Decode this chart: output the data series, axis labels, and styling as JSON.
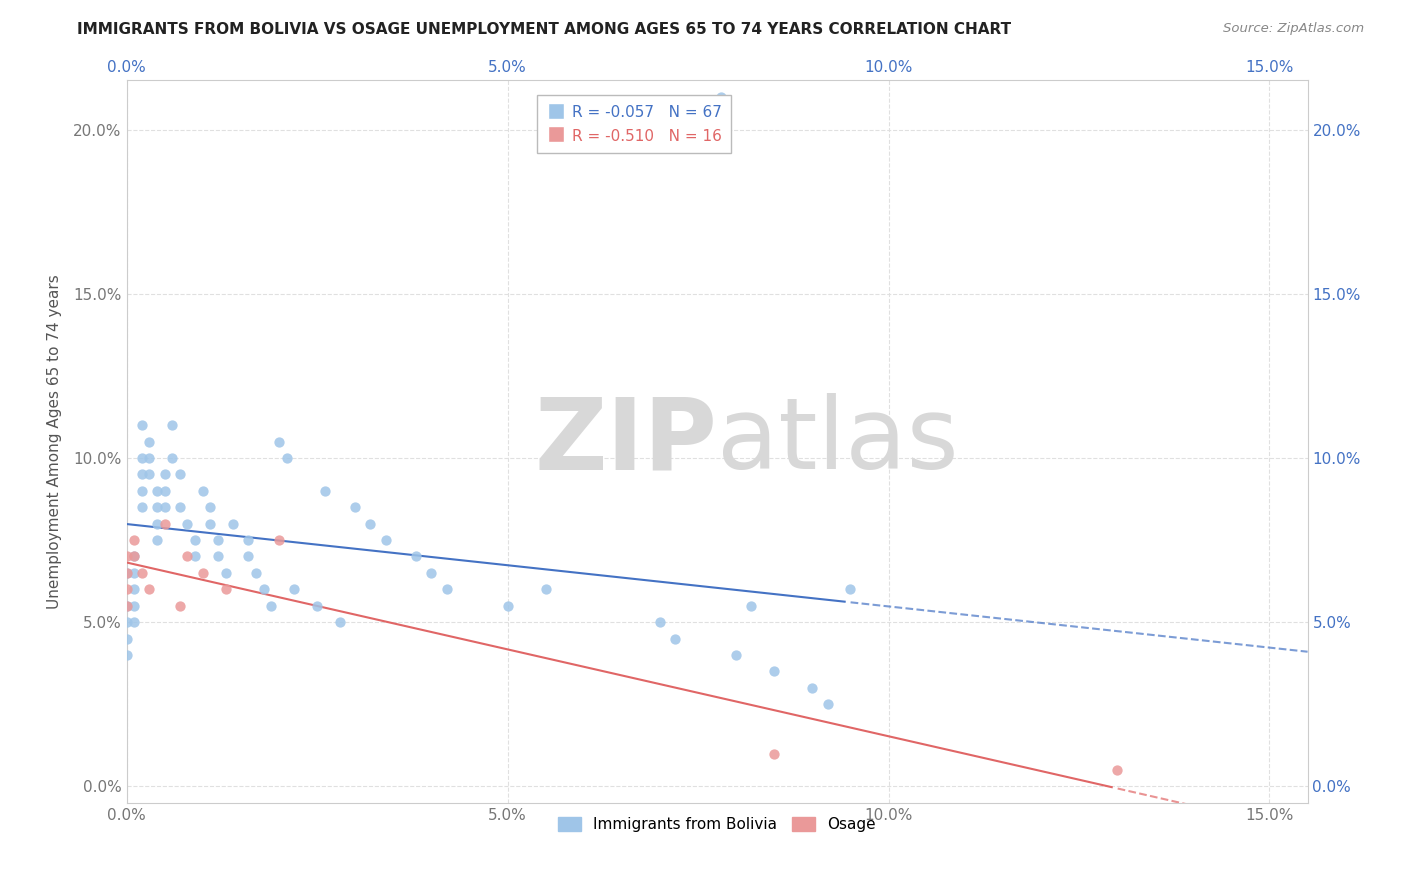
{
  "title": "IMMIGRANTS FROM BOLIVIA VS OSAGE UNEMPLOYMENT AMONG AGES 65 TO 74 YEARS CORRELATION CHART",
  "source": "Source: ZipAtlas.com",
  "ylabel_label": "Unemployment Among Ages 65 to 74 years",
  "legend_label1": "Immigrants from Bolivia",
  "legend_label2": "Osage",
  "R1": -0.057,
  "N1": 67,
  "R2": -0.51,
  "N2": 16,
  "color1": "#9fc5e8",
  "color2": "#ea9999",
  "trendline1_color": "#4472c4",
  "trendline2_color": "#e06666",
  "watermark_zip": "ZIP",
  "watermark_atlas": "atlas",
  "watermark_color": "#d8d8d8",
  "xlim": [
    0.0,
    0.155
  ],
  "ylim": [
    -0.005,
    0.215
  ],
  "x_tick_vals": [
    0.0,
    0.05,
    0.1,
    0.15
  ],
  "y_tick_vals": [
    0.0,
    0.05,
    0.1,
    0.15,
    0.2
  ],
  "bolivia_x": [
    0.0,
    0.0,
    0.0,
    0.0,
    0.0,
    0.001,
    0.001,
    0.001,
    0.001,
    0.001,
    0.002,
    0.002,
    0.002,
    0.002,
    0.002,
    0.003,
    0.003,
    0.003,
    0.004,
    0.004,
    0.004,
    0.004,
    0.005,
    0.005,
    0.005,
    0.006,
    0.006,
    0.007,
    0.007,
    0.008,
    0.009,
    0.009,
    0.01,
    0.011,
    0.011,
    0.012,
    0.012,
    0.013,
    0.014,
    0.016,
    0.016,
    0.017,
    0.018,
    0.019,
    0.02,
    0.021,
    0.022,
    0.025,
    0.026,
    0.028,
    0.03,
    0.032,
    0.034,
    0.038,
    0.04,
    0.042,
    0.05,
    0.055,
    0.07,
    0.072,
    0.078,
    0.08,
    0.082,
    0.085,
    0.09,
    0.092,
    0.095
  ],
  "bolivia_y": [
    0.065,
    0.055,
    0.05,
    0.045,
    0.04,
    0.07,
    0.065,
    0.06,
    0.055,
    0.05,
    0.11,
    0.1,
    0.095,
    0.09,
    0.085,
    0.105,
    0.1,
    0.095,
    0.09,
    0.085,
    0.08,
    0.075,
    0.095,
    0.09,
    0.085,
    0.11,
    0.1,
    0.095,
    0.085,
    0.08,
    0.075,
    0.07,
    0.09,
    0.085,
    0.08,
    0.075,
    0.07,
    0.065,
    0.08,
    0.075,
    0.07,
    0.065,
    0.06,
    0.055,
    0.105,
    0.1,
    0.06,
    0.055,
    0.09,
    0.05,
    0.085,
    0.08,
    0.075,
    0.07,
    0.065,
    0.06,
    0.055,
    0.06,
    0.05,
    0.045,
    0.21,
    0.04,
    0.055,
    0.035,
    0.03,
    0.025,
    0.06
  ],
  "osage_x": [
    0.0,
    0.0,
    0.0,
    0.0,
    0.001,
    0.001,
    0.002,
    0.003,
    0.005,
    0.007,
    0.008,
    0.01,
    0.013,
    0.02,
    0.085,
    0.13
  ],
  "osage_y": [
    0.07,
    0.065,
    0.06,
    0.055,
    0.075,
    0.07,
    0.065,
    0.06,
    0.08,
    0.055,
    0.07,
    0.065,
    0.06,
    0.075,
    0.01,
    0.005
  ]
}
